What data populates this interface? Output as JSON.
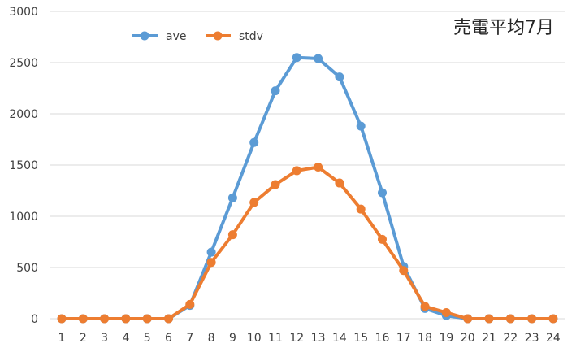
{
  "chart_data": {
    "type": "line",
    "title": "売電平均7月",
    "xlabel": "",
    "ylabel": "",
    "x": [
      1,
      2,
      3,
      4,
      5,
      6,
      7,
      8,
      9,
      10,
      11,
      12,
      13,
      14,
      15,
      16,
      17,
      18,
      19,
      20,
      21,
      22,
      23,
      24
    ],
    "ylim": [
      0,
      3000
    ],
    "yticks": [
      0,
      500,
      1000,
      1500,
      2000,
      2500,
      3000
    ],
    "grid": true,
    "legend": "top-left",
    "series": [
      {
        "name": "ave",
        "color": "#5b9bd5",
        "values": [
          0,
          0,
          0,
          0,
          0,
          0,
          130,
          650,
          1180,
          1720,
          2225,
          2550,
          2540,
          2360,
          1880,
          1230,
          510,
          100,
          30,
          0,
          0,
          0,
          0,
          0
        ]
      },
      {
        "name": "stdv",
        "color": "#ed7d31",
        "values": [
          0,
          0,
          0,
          0,
          0,
          0,
          140,
          550,
          820,
          1135,
          1310,
          1445,
          1480,
          1325,
          1070,
          775,
          470,
          120,
          60,
          0,
          0,
          0,
          0,
          0
        ]
      }
    ]
  }
}
